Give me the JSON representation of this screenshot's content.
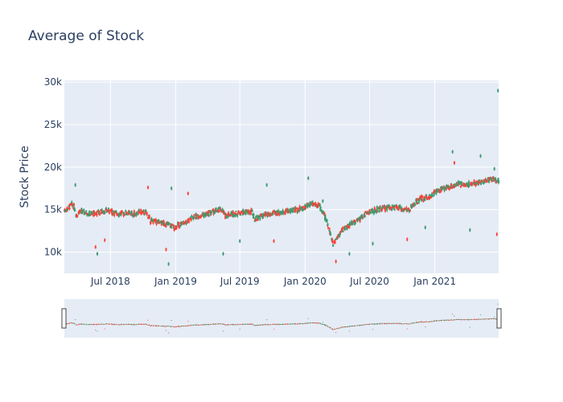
{
  "chart_data": {
    "type": "candlestick",
    "title": "Average of Stock",
    "xlabel": "",
    "ylabel": "Stock Price",
    "x_range": [
      "2018-02-21",
      "2021-06-30"
    ],
    "ylim": [
      7500,
      30200
    ],
    "x_tick_labels": [
      {
        "date": "2018-07-01",
        "label": "Jul 2018"
      },
      {
        "date": "2019-01-01",
        "label": "Jan 2019"
      },
      {
        "date": "2019-07-01",
        "label": "Jul 2019"
      },
      {
        "date": "2020-01-01",
        "label": "Jan 2020"
      },
      {
        "date": "2020-07-01",
        "label": "Jul 2020"
      },
      {
        "date": "2021-01-01",
        "label": "Jan 2021"
      }
    ],
    "y_tick_labels": [
      {
        "value": 10000,
        "label": "10k"
      },
      {
        "value": 15000,
        "label": "15k"
      },
      {
        "value": 20000,
        "label": "20k"
      },
      {
        "value": 25000,
        "label": "25k"
      },
      {
        "value": 30000,
        "label": "30k"
      }
    ],
    "grid": true,
    "legend": "none",
    "rangeslider": true,
    "colors": {
      "increasing": "#3d9970",
      "decreasing": "#ff4136",
      "plot_bg": "#e5ecf6",
      "grid": "#ffffff",
      "text": "#2a3f5f"
    },
    "trend": [
      [
        "2018-02-21",
        14900
      ],
      [
        "2018-03-05",
        15200
      ],
      [
        "2018-03-15",
        15600
      ],
      [
        "2018-03-22",
        15200
      ],
      [
        "2018-03-27",
        14300
      ],
      [
        "2018-04-05",
        14800
      ],
      [
        "2018-04-20",
        14700
      ],
      [
        "2018-05-10",
        14500
      ],
      [
        "2018-05-25",
        14600
      ],
      [
        "2018-06-10",
        14800
      ],
      [
        "2018-06-25",
        14900
      ],
      [
        "2018-07-10",
        14600
      ],
      [
        "2018-07-25",
        14500
      ],
      [
        "2018-08-15",
        14600
      ],
      [
        "2018-09-05",
        14500
      ],
      [
        "2018-09-25",
        14700
      ],
      [
        "2018-10-10",
        14600
      ],
      [
        "2018-10-22",
        13700
      ],
      [
        "2018-11-10",
        13500
      ],
      [
        "2018-11-25",
        13400
      ],
      [
        "2018-12-15",
        13200
      ],
      [
        "2018-12-28",
        12900
      ],
      [
        "2019-01-15",
        13300
      ],
      [
        "2019-02-01",
        13600
      ],
      [
        "2019-02-20",
        14100
      ],
      [
        "2019-03-10",
        14300
      ],
      [
        "2019-04-01",
        14500
      ],
      [
        "2019-04-20",
        14800
      ],
      [
        "2019-05-10",
        15000
      ],
      [
        "2019-05-20",
        14300
      ],
      [
        "2019-06-05",
        14500
      ],
      [
        "2019-06-25",
        14600
      ],
      [
        "2019-07-15",
        14700
      ],
      [
        "2019-08-05",
        14700
      ],
      [
        "2019-08-12",
        13900
      ],
      [
        "2019-09-05",
        14300
      ],
      [
        "2019-10-01",
        14500
      ],
      [
        "2019-10-25",
        14700
      ],
      [
        "2019-11-20",
        14900
      ],
      [
        "2019-12-15",
        15000
      ],
      [
        "2020-01-05",
        15400
      ],
      [
        "2020-01-20",
        15800
      ],
      [
        "2020-02-10",
        15500
      ],
      [
        "2020-02-25",
        14300
      ],
      [
        "2020-03-10",
        12600
      ],
      [
        "2020-03-20",
        10900
      ],
      [
        "2020-04-01",
        11800
      ],
      [
        "2020-04-20",
        12800
      ],
      [
        "2020-05-10",
        13300
      ],
      [
        "2020-05-25",
        13600
      ],
      [
        "2020-06-10",
        14100
      ],
      [
        "2020-06-25",
        14700
      ],
      [
        "2020-07-15",
        14900
      ],
      [
        "2020-08-05",
        15100
      ],
      [
        "2020-08-25",
        15300
      ],
      [
        "2020-09-15",
        15200
      ],
      [
        "2020-10-01",
        15100
      ],
      [
        "2020-10-20",
        14900
      ],
      [
        "2020-11-10",
        15900
      ],
      [
        "2020-11-25",
        16300
      ],
      [
        "2020-12-15",
        16500
      ],
      [
        "2021-01-05",
        17100
      ],
      [
        "2021-01-25",
        17500
      ],
      [
        "2021-02-15",
        17700
      ],
      [
        "2021-03-05",
        18000
      ],
      [
        "2021-03-25",
        17900
      ],
      [
        "2021-04-15",
        18100
      ],
      [
        "2021-05-05",
        18200
      ],
      [
        "2021-05-25",
        18400
      ],
      [
        "2021-06-15",
        18600
      ],
      [
        "2021-06-30",
        18300
      ]
    ],
    "outliers": [
      {
        "date": "2018-03-24",
        "value": 17900,
        "dir": "up"
      },
      {
        "date": "2018-05-20",
        "value": 10600,
        "dir": "down"
      },
      {
        "date": "2018-05-25",
        "value": 9800,
        "dir": "up"
      },
      {
        "date": "2018-06-15",
        "value": 11400,
        "dir": "down"
      },
      {
        "date": "2018-10-15",
        "value": 17600,
        "dir": "down"
      },
      {
        "date": "2018-12-05",
        "value": 10300,
        "dir": "down"
      },
      {
        "date": "2018-12-12",
        "value": 8600,
        "dir": "up"
      },
      {
        "date": "2018-12-20",
        "value": 17500,
        "dir": "up"
      },
      {
        "date": "2019-02-05",
        "value": 16900,
        "dir": "down"
      },
      {
        "date": "2019-05-15",
        "value": 9800,
        "dir": "up"
      },
      {
        "date": "2019-07-01",
        "value": 11300,
        "dir": "up"
      },
      {
        "date": "2019-09-15",
        "value": 17900,
        "dir": "up"
      },
      {
        "date": "2019-10-05",
        "value": 11300,
        "dir": "down"
      },
      {
        "date": "2020-01-10",
        "value": 18700,
        "dir": "up"
      },
      {
        "date": "2020-03-28",
        "value": 8900,
        "dir": "down"
      },
      {
        "date": "2020-05-05",
        "value": 9800,
        "dir": "up"
      },
      {
        "date": "2020-07-10",
        "value": 11000,
        "dir": "up"
      },
      {
        "date": "2020-10-15",
        "value": 11500,
        "dir": "down"
      },
      {
        "date": "2020-12-05",
        "value": 12900,
        "dir": "up"
      },
      {
        "date": "2021-02-20",
        "value": 21800,
        "dir": "up"
      },
      {
        "date": "2021-02-25",
        "value": 20500,
        "dir": "down"
      },
      {
        "date": "2021-04-10",
        "value": 12600,
        "dir": "up"
      },
      {
        "date": "2021-05-10",
        "value": 21300,
        "dir": "up"
      },
      {
        "date": "2021-06-18",
        "value": 19800,
        "dir": "up"
      },
      {
        "date": "2021-06-28",
        "value": 29000,
        "dir": "up"
      },
      {
        "date": "2021-06-25",
        "value": 12100,
        "dir": "down"
      },
      {
        "date": "2020-02-20",
        "value": 16000,
        "dir": "up"
      }
    ]
  }
}
